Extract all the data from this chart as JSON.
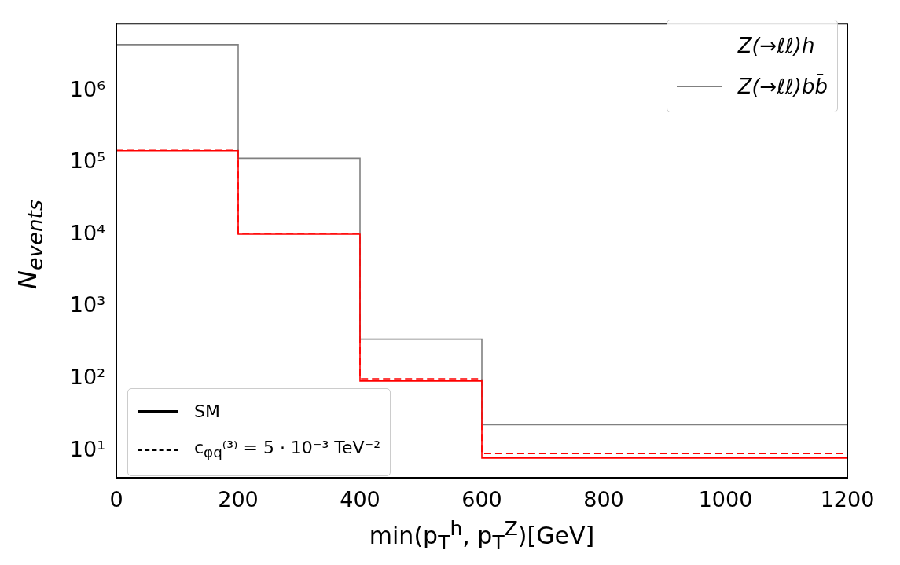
{
  "chart_data": {
    "type": "histogram",
    "xlabel": "min(p$_{T}$$^{h}$, p$_{T}$$^{Z}$)[GeV]",
    "ylabel": "N$_{events}$",
    "bins": [
      0,
      200,
      400,
      600,
      1200
    ],
    "series": [
      {
        "name": "Z(→ℓℓ)h",
        "color": "#ff0000",
        "values": [
          148000,
          10200,
          93,
          7.9
        ],
        "line_style": "solid"
      },
      {
        "name": "Z(→ℓℓ)bb̄",
        "color": "#808080",
        "values": [
          4400000,
          116000,
          355,
          23
        ],
        "line_style": "solid"
      },
      {
        "color": "#fe0000",
        "values": [
          150000,
          10500,
          100,
          9.1
        ],
        "line_style": "dashed"
      }
    ],
    "annotations": [
      "SM",
      "c$_{φq}$⁽³⁾ = 5 · 10⁻³ TeV⁻²"
    ],
    "log": "y",
    "xlim": [
      0,
      1200
    ],
    "xticks": [
      0,
      200,
      400,
      600,
      800,
      1000,
      1200
    ],
    "ylim": [
      4.2,
      8600000
    ],
    "yticks": [
      {
        "value": 10,
        "label": "10¹"
      },
      {
        "value": 100,
        "label": "10²"
      },
      {
        "value": 1000,
        "label": "10³"
      },
      {
        "value": 10000,
        "label": "10⁴"
      },
      {
        "value": 100000,
        "label": "10⁵"
      },
      {
        "value": 1000000,
        "label": "10⁶"
      }
    ],
    "grid": false,
    "legend": "top right"
  }
}
